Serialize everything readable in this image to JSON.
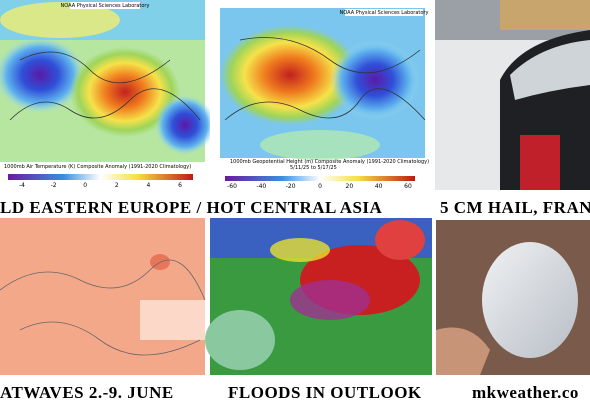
{
  "panels": [
    {
      "source": "NOAA Physical Sciences Laboratory",
      "map_title": "1000mb Air Temperature (K) Composite Anomaly (1991-2020 Climatology)",
      "scale": [
        "-4",
        "-2",
        "0",
        "2",
        "4",
        "6"
      ]
    },
    {
      "source": "NOAA Physical Sciences Laboratory",
      "map_title": "1000mb Geopotential Height (m) Composite Anomaly (1991-2020 Climatology)",
      "dates": "5/11/25 to 5/17/25",
      "scale": [
        "-60",
        "-40",
        "-20",
        "0",
        "20",
        "40",
        "60"
      ]
    }
  ],
  "captions": {
    "top_left": "LD EASTERN EUROPE / HOT CENTRAL ASIA",
    "top_right": "5 CM HAIL, FRAN",
    "bottom_left": "ATWAVES 2.-9. JUNE",
    "bottom_middle": "FLOODS IN OUTLOOK",
    "bottom_right": "mkweather.co"
  }
}
